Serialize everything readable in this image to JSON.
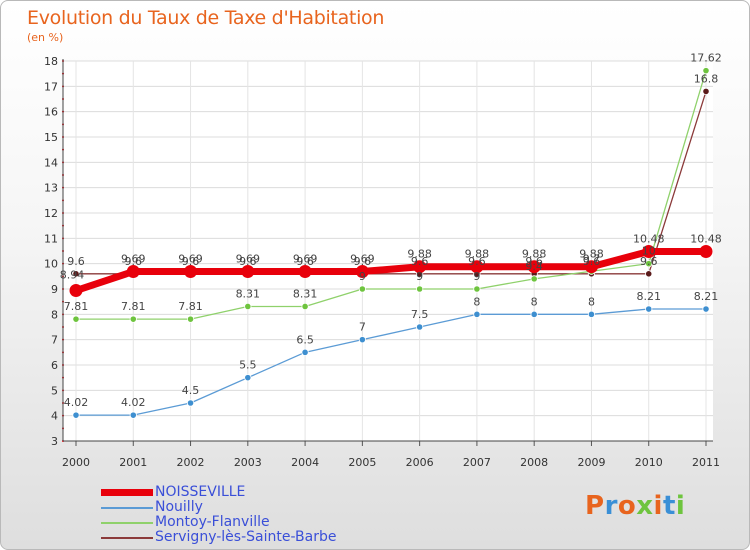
{
  "header": {
    "title": "Evolution du Taux de Taxe d'Habitation",
    "subtitle": "(en %)"
  },
  "logo": {
    "text": "Proxiti"
  },
  "chart_data": {
    "type": "line",
    "title": "Evolution du Taux de Taxe d'Habitation",
    "ylabel": "(en %)",
    "xlabel": "",
    "categories": [
      "2000",
      "2001",
      "2002",
      "2003",
      "2004",
      "2005",
      "2006",
      "2007",
      "2008",
      "2009",
      "2010",
      "2011"
    ],
    "ylim": [
      3,
      18
    ],
    "yticks": [
      3,
      4,
      5,
      6,
      7,
      8,
      9,
      10,
      11,
      12,
      13,
      14,
      15,
      16,
      17,
      18
    ],
    "grid": true,
    "legend_position": "bottom-left",
    "series": [
      {
        "name": "NOISSEVILLE",
        "color": "#e8000b",
        "values": [
          8.94,
          9.69,
          9.69,
          9.69,
          9.69,
          9.69,
          9.88,
          9.88,
          9.88,
          9.88,
          10.48,
          10.48
        ],
        "labels": [
          "8.94",
          "9.69",
          "9.69",
          "9.69",
          "9.69",
          "9.69",
          "9.88",
          "9.88",
          "9.88",
          "9.88",
          "10.48",
          "10.48"
        ]
      },
      {
        "name": "Nouilly",
        "color": "#5b9bd5",
        "values": [
          4.02,
          4.02,
          4.5,
          5.5,
          6.5,
          7,
          7.5,
          8,
          8,
          8,
          8.21,
          8.21
        ],
        "labels": [
          "4.02",
          "4.02",
          "4.5",
          "5.5",
          "6.5",
          "7",
          "7.5",
          "8",
          "8",
          "8",
          "8.21",
          "8.21"
        ]
      },
      {
        "name": "Montoy-Flanville",
        "color": "#8fd16b",
        "values": [
          7.81,
          7.81,
          7.81,
          8.31,
          8.31,
          9,
          9,
          9,
          9.4,
          9.7,
          10,
          17.62
        ],
        "labels": [
          "7.81",
          "7.81",
          "7.81",
          "8.31",
          "8.31",
          "9",
          "9",
          "9",
          "9.4",
          "9.7",
          "10",
          "17.62"
        ]
      },
      {
        "name": "Servigny-lès-Sainte-Barbe",
        "color": "#8b3a3a",
        "values": [
          9.6,
          9.6,
          9.6,
          9.6,
          9.6,
          9.6,
          9.6,
          9.6,
          9.6,
          9.6,
          9.6,
          16.8
        ],
        "labels": [
          "9.6",
          "9.6",
          "9.6",
          "9.6",
          "9.6",
          "9.6",
          "9.6",
          "9.6",
          "9.6",
          "9.6",
          "9.6",
          "16.8"
        ]
      }
    ]
  }
}
